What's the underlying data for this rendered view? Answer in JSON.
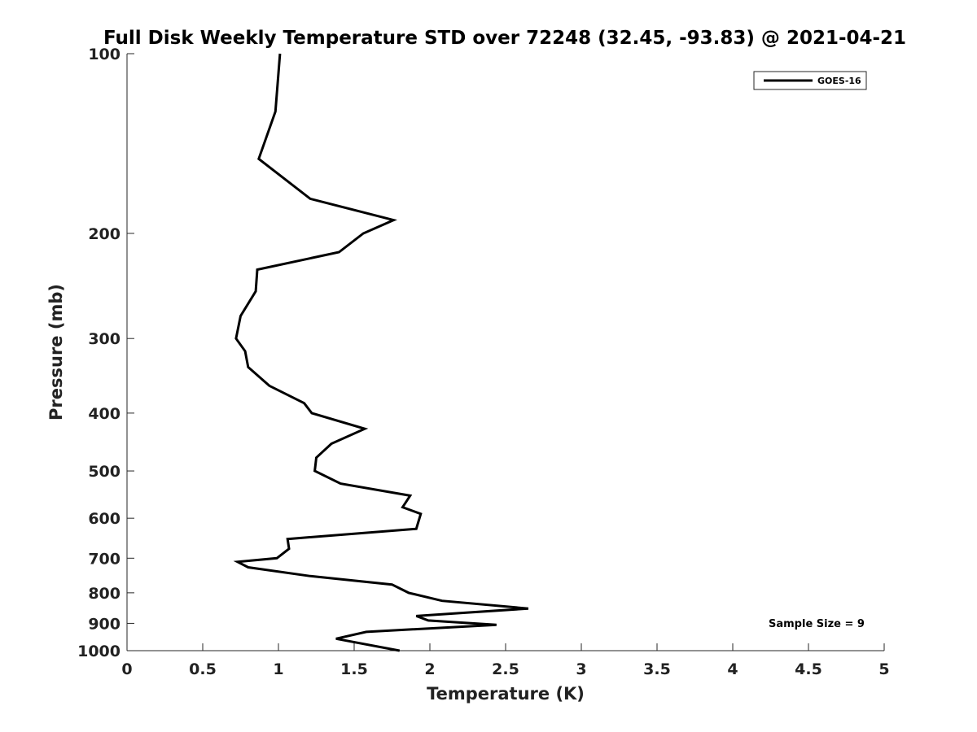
{
  "chart_data": {
    "type": "line",
    "title": "Full Disk Weekly Temperature STD over 72248 (32.45, -93.83) @ 2021-04-21",
    "xlabel": "Temperature (K)",
    "ylabel": "Pressure (mb)",
    "xlim": [
      0,
      5
    ],
    "ylim": [
      100,
      1000
    ],
    "y_scale": "log",
    "y_reversed": true,
    "x_ticks": [
      0,
      0.5,
      1,
      1.5,
      2,
      2.5,
      3,
      3.5,
      4,
      4.5,
      5
    ],
    "x_tick_labels": [
      "0",
      "0.5",
      "1",
      "1.5",
      "2",
      "2.5",
      "3",
      "3.5",
      "4",
      "4.5",
      "5"
    ],
    "y_ticks": [
      100,
      200,
      300,
      400,
      500,
      600,
      700,
      800,
      900,
      1000
    ],
    "y_tick_labels": [
      "100",
      "200",
      "300",
      "400",
      "500",
      "600",
      "700",
      "800",
      "900",
      "1000"
    ],
    "grid": false,
    "legend_position": "top-right",
    "annotation": "Sample Size = 9",
    "series": [
      {
        "name": "GOES-16",
        "color": "#000000",
        "points": [
          [
            1.01,
            100
          ],
          [
            0.98,
            125
          ],
          [
            0.87,
            150
          ],
          [
            1.21,
            175
          ],
          [
            1.76,
            190
          ],
          [
            1.56,
            200
          ],
          [
            1.4,
            215
          ],
          [
            0.86,
            230
          ],
          [
            0.85,
            250
          ],
          [
            0.75,
            275
          ],
          [
            0.72,
            300
          ],
          [
            0.78,
            315
          ],
          [
            0.8,
            335
          ],
          [
            0.94,
            360
          ],
          [
            1.17,
            385
          ],
          [
            1.22,
            400
          ],
          [
            1.57,
            425
          ],
          [
            1.35,
            450
          ],
          [
            1.25,
            475
          ],
          [
            1.24,
            500
          ],
          [
            1.41,
            525
          ],
          [
            1.87,
            550
          ],
          [
            1.82,
            575
          ],
          [
            1.94,
            590
          ],
          [
            1.91,
            625
          ],
          [
            1.06,
            650
          ],
          [
            1.07,
            675
          ],
          [
            0.99,
            700
          ],
          [
            0.73,
            710
          ],
          [
            0.8,
            725
          ],
          [
            1.21,
            750
          ],
          [
            1.75,
            775
          ],
          [
            1.86,
            800
          ],
          [
            2.08,
            825
          ],
          [
            2.65,
            850
          ],
          [
            2.2,
            865
          ],
          [
            1.91,
            875
          ],
          [
            1.99,
            890
          ],
          [
            2.44,
            905
          ],
          [
            1.58,
            930
          ],
          [
            1.38,
            955
          ],
          [
            1.8,
            1000
          ]
        ]
      }
    ]
  }
}
